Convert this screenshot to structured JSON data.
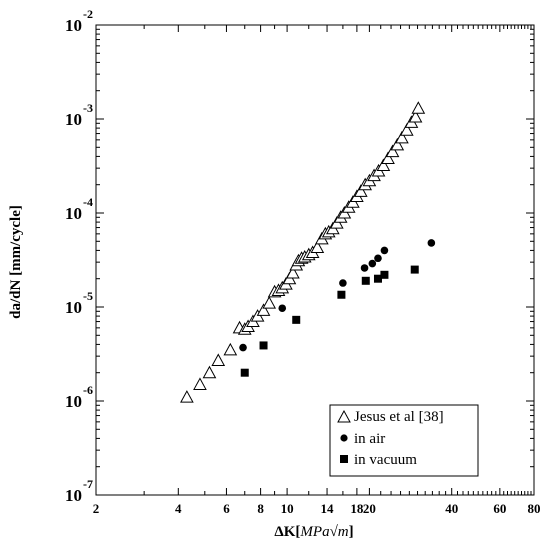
{
  "chart_data": {
    "type": "scatter",
    "xscale": "log",
    "yscale": "log",
    "xlim": [
      2,
      80
    ],
    "ylim": [
      1e-07,
      0.01
    ],
    "xlabel": "ΔK[MPa√m]",
    "xlabel_parts": {
      "prefix": "ΔK[",
      "italic": "MPa√m",
      "suffix": "]"
    },
    "ylabel": "da/dN [mm/cycle]",
    "x_ticks": [
      2,
      4,
      6,
      8,
      10,
      14,
      18,
      20,
      40,
      60,
      80
    ],
    "x_tick_labels": [
      "2",
      "4",
      "6",
      "8",
      "10",
      "14",
      "18",
      "20",
      "40",
      "60",
      "80"
    ],
    "y_ticks": [
      {
        "value": 1e-07,
        "base": "10",
        "exp": "-7"
      },
      {
        "value": 1e-06,
        "base": "10",
        "exp": "-6"
      },
      {
        "value": 1e-05,
        "base": "10",
        "exp": "-5"
      },
      {
        "value": 0.0001,
        "base": "10",
        "exp": "-4"
      },
      {
        "value": 0.001,
        "base": "10",
        "exp": "-3"
      },
      {
        "value": 0.01,
        "base": "10",
        "exp": "-2"
      }
    ],
    "grid": false,
    "legend_position": "bottom-right",
    "series": [
      {
        "name": "Jesus et al [38]",
        "marker": "open-triangle",
        "color": "#000000",
        "points": [
          [
            4.3,
            1.1e-06
          ],
          [
            4.8,
            1.5e-06
          ],
          [
            5.2,
            2e-06
          ],
          [
            5.6,
            2.7e-06
          ],
          [
            6.2,
            3.5e-06
          ],
          [
            6.7,
            6e-06
          ],
          [
            7.0,
            5.8e-06
          ],
          [
            7.2,
            6.2e-06
          ],
          [
            7.5,
            7e-06
          ],
          [
            7.8,
            8e-06
          ],
          [
            8.2,
            9.2e-06
          ],
          [
            8.6,
            1.1e-05
          ],
          [
            9.0,
            1.45e-05
          ],
          [
            9.3,
            1.5e-05
          ],
          [
            9.6,
            1.6e-05
          ],
          [
            9.9,
            1.75e-05
          ],
          [
            10.2,
            2e-05
          ],
          [
            10.5,
            2.3e-05
          ],
          [
            10.8,
            2.8e-05
          ],
          [
            11.0,
            3.1e-05
          ],
          [
            11.3,
            3.3e-05
          ],
          [
            11.6,
            3.4e-05
          ],
          [
            12.0,
            3.6e-05
          ],
          [
            12.4,
            3.8e-05
          ],
          [
            12.9,
            4.3e-05
          ],
          [
            13.4,
            5.3e-05
          ],
          [
            13.8,
            6e-05
          ],
          [
            14.2,
            6.3e-05
          ],
          [
            14.7,
            6.8e-05
          ],
          [
            15.2,
            7.8e-05
          ],
          [
            15.7,
            9e-05
          ],
          [
            16.2,
            0.0001
          ],
          [
            16.8,
            0.000115
          ],
          [
            17.4,
            0.00013
          ],
          [
            18.0,
            0.00015
          ],
          [
            18.6,
            0.00017
          ],
          [
            19.3,
            0.0002
          ],
          [
            20.0,
            0.00022
          ],
          [
            20.8,
            0.00025
          ],
          [
            21.6,
            0.00028
          ],
          [
            22.5,
            0.00032
          ],
          [
            23.4,
            0.00038
          ],
          [
            24.3,
            0.00045
          ],
          [
            25.3,
            0.00053
          ],
          [
            26.3,
            0.00063
          ],
          [
            27.4,
            0.00076
          ],
          [
            28.5,
            0.00092
          ],
          [
            29.5,
            0.00105
          ],
          [
            30.2,
            0.0013
          ]
        ]
      },
      {
        "name": "in air",
        "marker": "filled-circle",
        "color": "#000000",
        "points": [
          [
            6.9,
            3.7e-06
          ],
          [
            9.6,
            9.7e-06
          ],
          [
            16.0,
            1.8e-05
          ],
          [
            19.2,
            2.6e-05
          ],
          [
            20.5,
            2.9e-05
          ],
          [
            21.5,
            3.3e-05
          ],
          [
            22.7,
            4e-05
          ],
          [
            33.7,
            4.8e-05
          ]
        ]
      },
      {
        "name": "in vacuum",
        "marker": "filled-square",
        "color": "#000000",
        "points": [
          [
            7.0,
            2e-06
          ],
          [
            8.2,
            3.9e-06
          ],
          [
            10.8,
            7.3e-06
          ],
          [
            15.8,
            1.35e-05
          ],
          [
            19.4,
            1.9e-05
          ],
          [
            21.5,
            2e-05
          ],
          [
            22.7,
            2.2e-05
          ],
          [
            29.3,
            2.5e-05
          ]
        ]
      }
    ]
  }
}
